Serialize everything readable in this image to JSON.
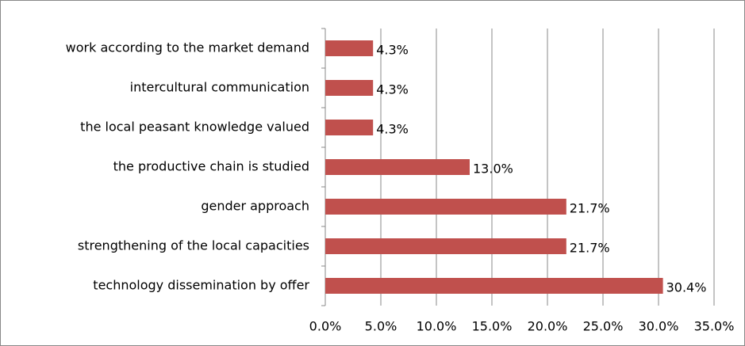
{
  "chart_data": {
    "type": "bar",
    "orientation": "horizontal",
    "categories": [
      "work according to the market demand",
      "intercultural communication",
      "the local peasant knowledge valued",
      "the productive chain is studied",
      "gender approach",
      "strengthening of the local capacities",
      "technology dissemination by offer"
    ],
    "values": [
      4.3,
      4.3,
      4.3,
      13.0,
      21.7,
      21.7,
      30.4
    ],
    "value_labels": [
      "4.3%",
      "4.3%",
      "4.3%",
      "13.0%",
      "21.7%",
      "21.7%",
      "30.4%"
    ],
    "color": "#c0504d",
    "xlim": [
      0,
      35
    ],
    "xticks": [
      {
        "value": 0,
        "label": "0.0%"
      },
      {
        "value": 5,
        "label": "5.0%"
      },
      {
        "value": 10,
        "label": "10.0%"
      },
      {
        "value": 15,
        "label": "15.0%"
      },
      {
        "value": 20,
        "label": "20.0%"
      },
      {
        "value": 25,
        "label": "25.0%"
      },
      {
        "value": 30,
        "label": "30.0%"
      },
      {
        "value": 35,
        "label": "35.0%"
      }
    ],
    "grid": true
  }
}
